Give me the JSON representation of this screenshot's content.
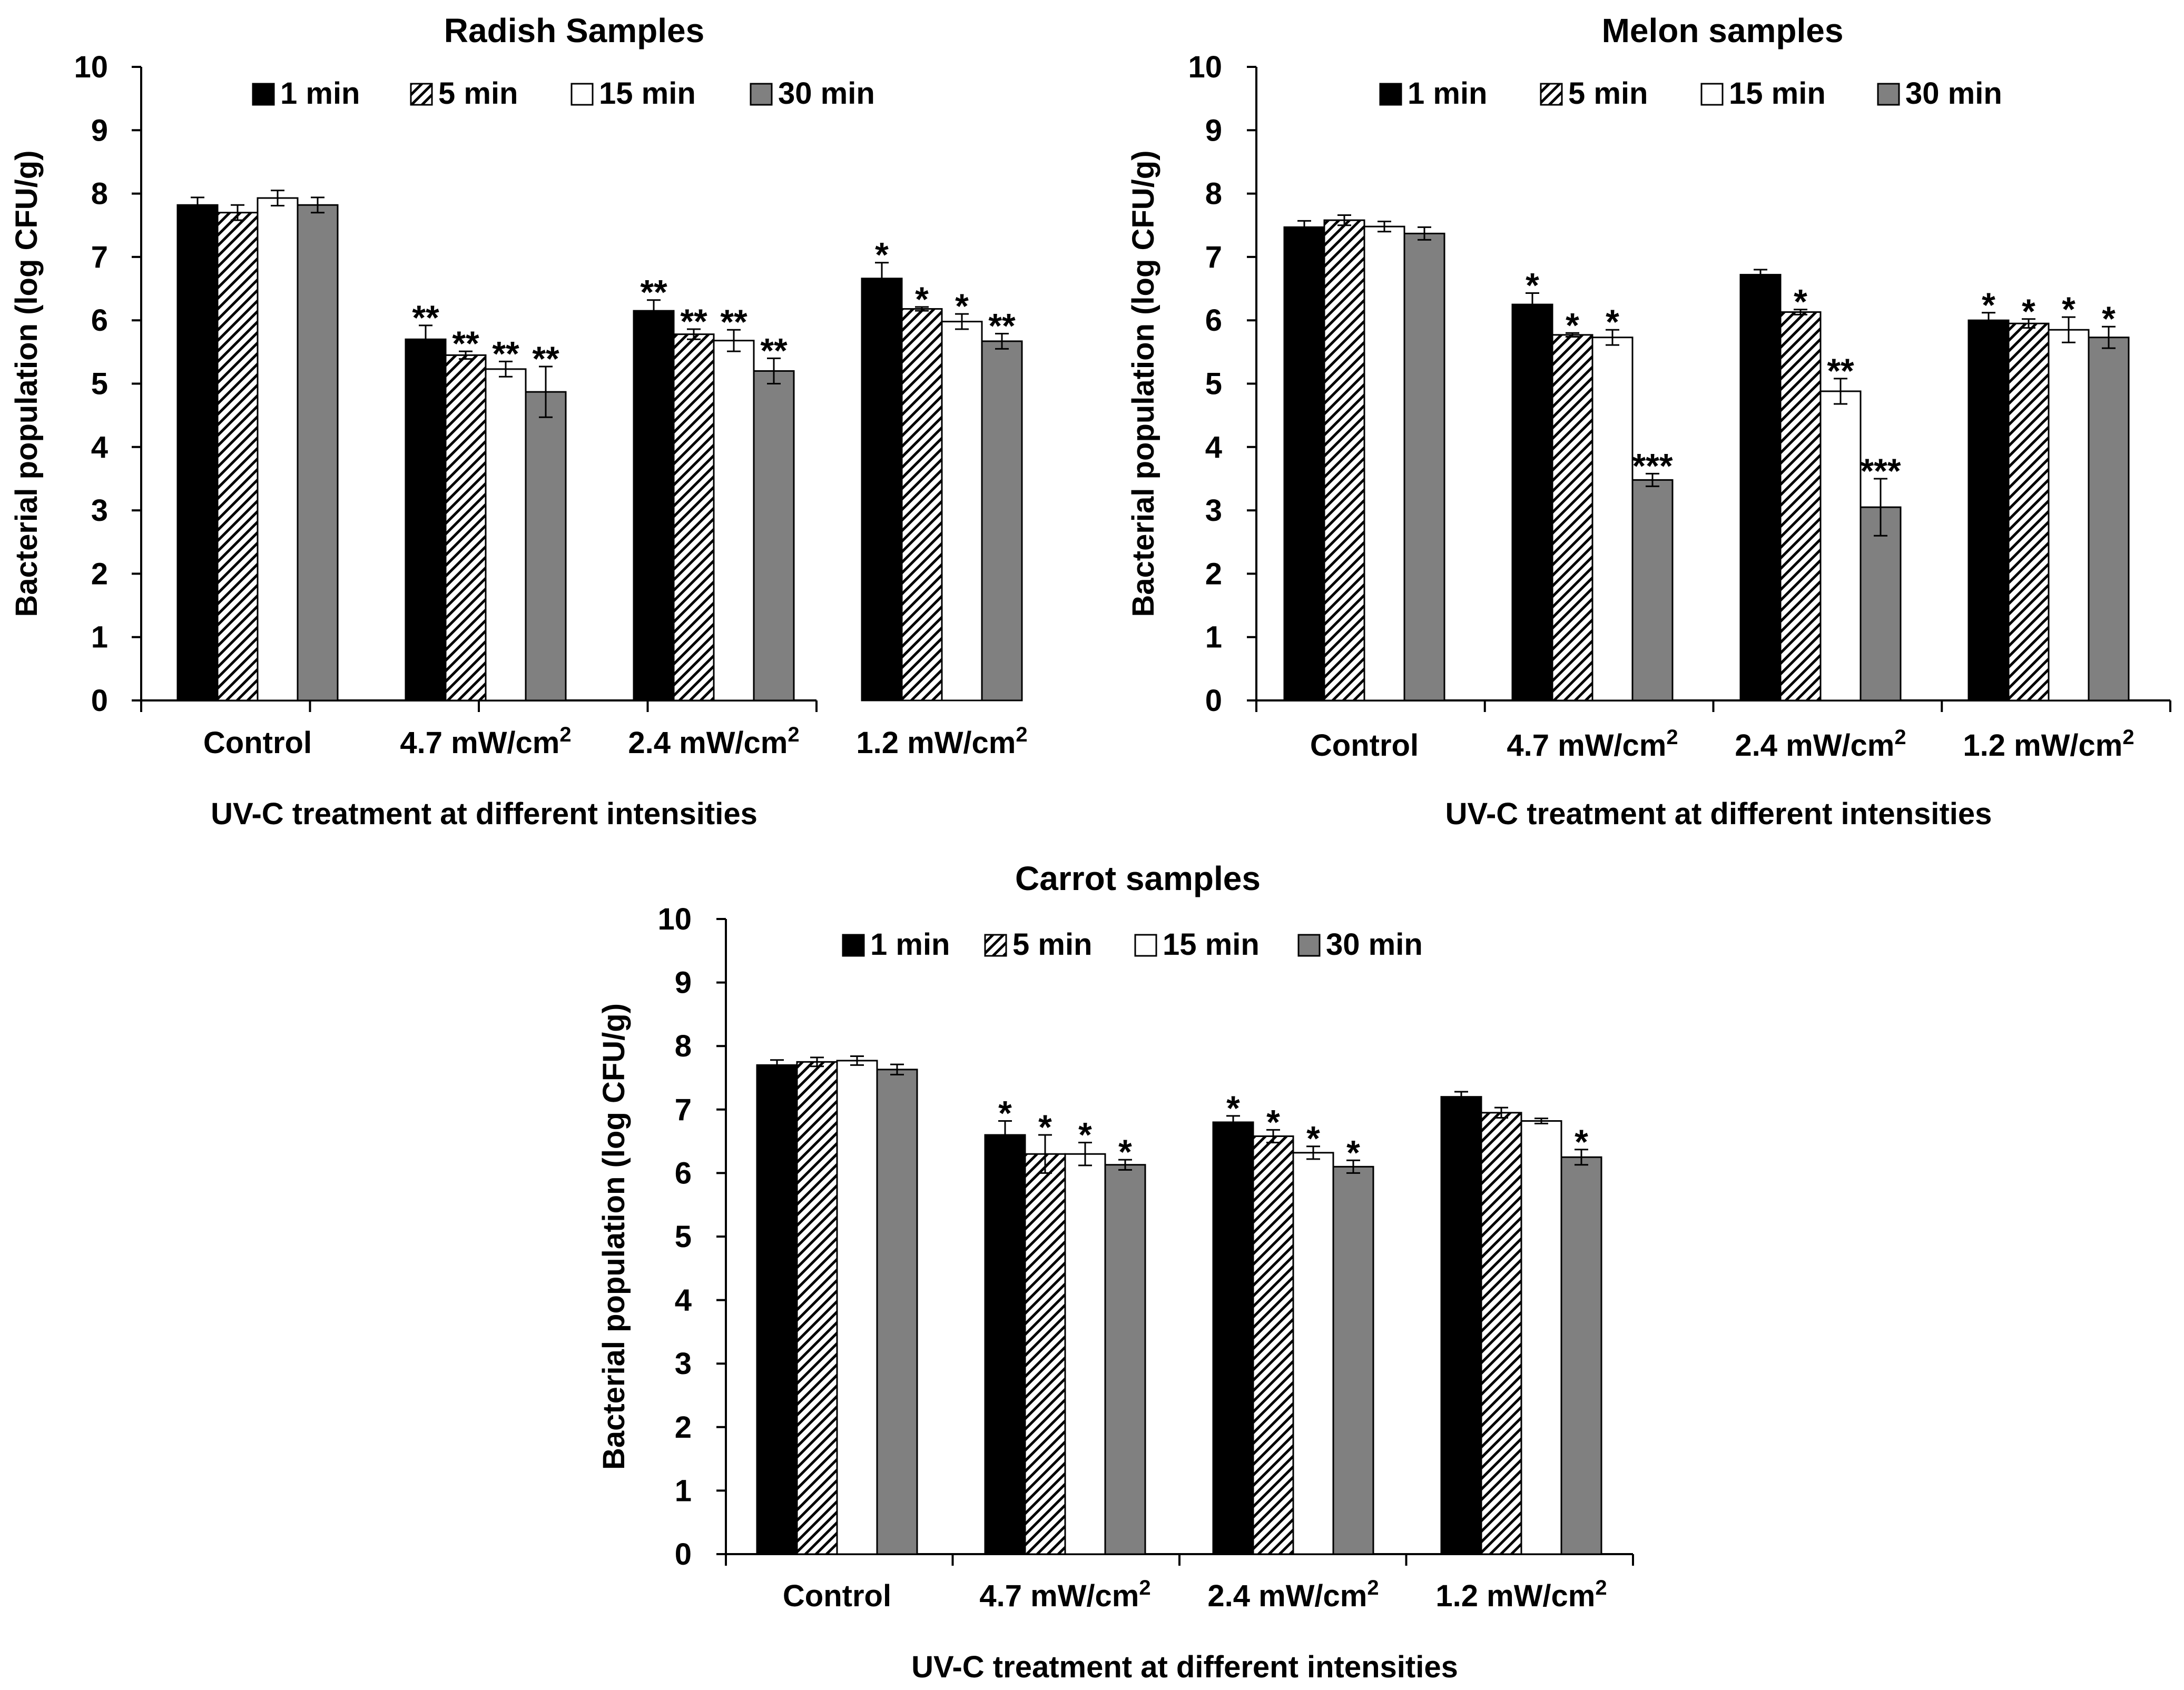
{
  "colors": {
    "series_1min": "#000000",
    "series_5min": "hatched-black-white",
    "series_15min": "#ffffff",
    "series_30min": "#808080"
  },
  "chart_data": [
    {
      "type": "bar",
      "title": "Radish Samples",
      "xlabel": "UV-C treatment at different intensities",
      "ylabel": "Bacterial population  (log CFU/g)",
      "ylim": [
        0,
        10
      ],
      "yticks": [
        0,
        1,
        2,
        3,
        4,
        5,
        6,
        7,
        8,
        9,
        10
      ],
      "categories": [
        {
          "label": "Control",
          "sup": ""
        },
        {
          "label": "4.7 mW/cm",
          "sup": "2"
        },
        {
          "label": "2.4 mW/cm",
          "sup": "2"
        },
        {
          "label": "1.2 mW/cm",
          "sup": "2"
        }
      ],
      "legend": "top",
      "series": [
        {
          "name": "1 min",
          "values": [
            7.82,
            5.7,
            6.15,
            6.66
          ],
          "errors": [
            0.12,
            0.22,
            0.17,
            0.25
          ],
          "significance": [
            "",
            "**",
            "**",
            "*"
          ]
        },
        {
          "name": "5 min",
          "values": [
            7.7,
            5.45,
            5.78,
            6.18
          ],
          "errors": [
            0.12,
            0.06,
            0.08,
            0.03
          ],
          "significance": [
            "",
            "**",
            "**",
            "*"
          ]
        },
        {
          "name": "15 min",
          "values": [
            7.93,
            5.23,
            5.68,
            5.98
          ],
          "errors": [
            0.12,
            0.12,
            0.17,
            0.12
          ],
          "significance": [
            "",
            "**",
            "**",
            "*"
          ]
        },
        {
          "name": "30 min",
          "values": [
            7.82,
            4.87,
            5.2,
            5.67
          ],
          "errors": [
            0.12,
            0.4,
            0.2,
            0.12
          ],
          "significance": [
            "",
            "**",
            "**",
            "**"
          ]
        }
      ]
    },
    {
      "type": "bar",
      "title": "Melon samples",
      "xlabel": "UV-C treatment at different intensities",
      "ylabel": "Bacterial population  (log CFU/g)",
      "ylim": [
        0,
        10
      ],
      "yticks": [
        0,
        1,
        2,
        3,
        4,
        5,
        6,
        7,
        8,
        9,
        10
      ],
      "categories": [
        {
          "label": "Control",
          "sup": ""
        },
        {
          "label": "4.7 mW/cm",
          "sup": "2"
        },
        {
          "label": "2.4 mW/cm",
          "sup": "2"
        },
        {
          "label": "1.2 mW/cm",
          "sup": "2"
        }
      ],
      "legend": "top",
      "series": [
        {
          "name": "1 min",
          "values": [
            7.47,
            6.25,
            6.72,
            6.0
          ],
          "errors": [
            0.1,
            0.18,
            0.08,
            0.12
          ],
          "significance": [
            "",
            "*",
            "",
            "*"
          ]
        },
        {
          "name": "5 min",
          "values": [
            7.58,
            5.77,
            6.13,
            5.95
          ],
          "errors": [
            0.08,
            0.03,
            0.04,
            0.07
          ],
          "significance": [
            "",
            "*",
            "*",
            "*"
          ]
        },
        {
          "name": "15 min",
          "values": [
            7.48,
            5.73,
            4.88,
            5.85
          ],
          "errors": [
            0.08,
            0.12,
            0.2,
            0.2
          ],
          "significance": [
            "",
            "*",
            "**",
            "*"
          ]
        },
        {
          "name": "30 min",
          "values": [
            7.37,
            3.48,
            3.05,
            5.73
          ],
          "errors": [
            0.1,
            0.1,
            0.45,
            0.17
          ],
          "significance": [
            "",
            "***",
            "***",
            "*"
          ]
        }
      ]
    },
    {
      "type": "bar",
      "title": "Carrot samples",
      "xlabel": "UV-C treatment at different intensities",
      "ylabel": "Bacterial population  (log CFU/g)",
      "ylim": [
        0,
        10
      ],
      "yticks": [
        0,
        1,
        2,
        3,
        4,
        5,
        6,
        7,
        8,
        9,
        10
      ],
      "categories": [
        {
          "label": "Control",
          "sup": ""
        },
        {
          "label": "4.7 mW/cm",
          "sup": "2"
        },
        {
          "label": "2.4 mW/cm",
          "sup": "2"
        },
        {
          "label": "1.2 mW/cm",
          "sup": "2"
        }
      ],
      "legend": "top",
      "series": [
        {
          "name": "1 min",
          "values": [
            7.7,
            6.6,
            6.8,
            7.2
          ],
          "errors": [
            0.08,
            0.22,
            0.1,
            0.08
          ],
          "significance": [
            "",
            "*",
            "*",
            ""
          ]
        },
        {
          "name": "5 min",
          "values": [
            7.75,
            6.3,
            6.58,
            6.95
          ],
          "errors": [
            0.07,
            0.3,
            0.1,
            0.08
          ],
          "significance": [
            "",
            "*",
            "*",
            ""
          ]
        },
        {
          "name": "15 min",
          "values": [
            7.77,
            6.3,
            6.32,
            6.82
          ],
          "errors": [
            0.07,
            0.18,
            0.1,
            0.04
          ],
          "significance": [
            "",
            "*",
            "*",
            ""
          ]
        },
        {
          "name": "30 min",
          "values": [
            7.63,
            6.13,
            6.1,
            6.25
          ],
          "errors": [
            0.08,
            0.08,
            0.1,
            0.12
          ],
          "significance": [
            "",
            "*",
            "*",
            "*"
          ]
        }
      ]
    }
  ]
}
